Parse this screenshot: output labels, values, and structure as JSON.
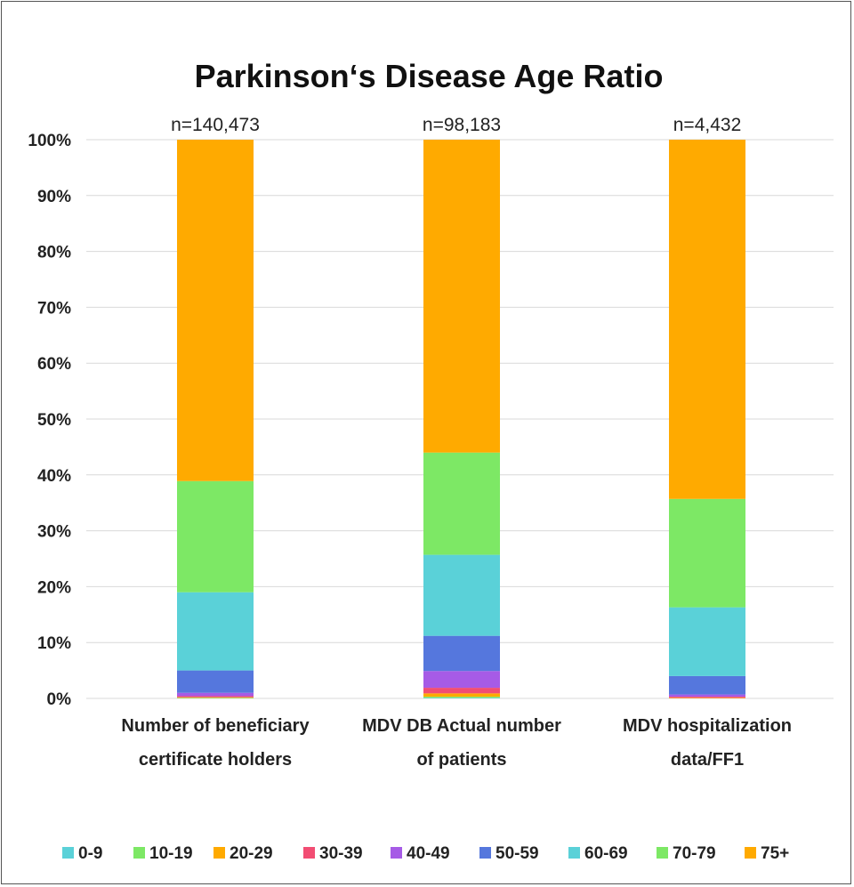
{
  "chart_data": {
    "type": "bar",
    "stacked": true,
    "percent": true,
    "title": "Parkinson‘s Disease Age Ratio",
    "xlabel": "",
    "ylabel": "",
    "ylim": [
      0,
      100
    ],
    "yticks": [
      "0%",
      "10%",
      "20%",
      "30%",
      "40%",
      "50%",
      "60%",
      "70%",
      "80%",
      "90%",
      "100%"
    ],
    "grid": true,
    "legend": "bottom",
    "categories": [
      [
        "Number of beneficiary",
        "certificate holders"
      ],
      [
        "MDV DB Actual number",
        "of patients"
      ],
      [
        "MDV hospitalization",
        "data/FF1"
      ]
    ],
    "annotations": [
      "n=140,473",
      "n=98,183",
      "n=4,432"
    ],
    "series": [
      {
        "name": "0-9",
        "color": "#5ad1d8",
        "values": [
          0.0,
          0.1,
          0.0
        ]
      },
      {
        "name": "10-19",
        "color": "#7de865",
        "values": [
          0.1,
          0.2,
          0.0
        ]
      },
      {
        "name": "20-29",
        "color": "#ffaa00",
        "values": [
          0.1,
          0.6,
          0.1
        ]
      },
      {
        "name": "30-39",
        "color": "#f24d73",
        "values": [
          0.2,
          1.0,
          0.2
        ]
      },
      {
        "name": "40-49",
        "color": "#a65be6",
        "values": [
          0.6,
          3.0,
          0.4
        ]
      },
      {
        "name": "50-59",
        "color": "#5577dd",
        "values": [
          4.0,
          6.3,
          3.3
        ]
      },
      {
        "name": "60-69",
        "color": "#5ad1d8",
        "values": [
          14.0,
          14.5,
          12.3
        ]
      },
      {
        "name": "70-79",
        "color": "#7de865",
        "values": [
          19.9,
          18.3,
          19.4
        ]
      },
      {
        "name": "75+",
        "color": "#ffaa00",
        "values": [
          61.1,
          56.0,
          64.3
        ]
      }
    ]
  }
}
